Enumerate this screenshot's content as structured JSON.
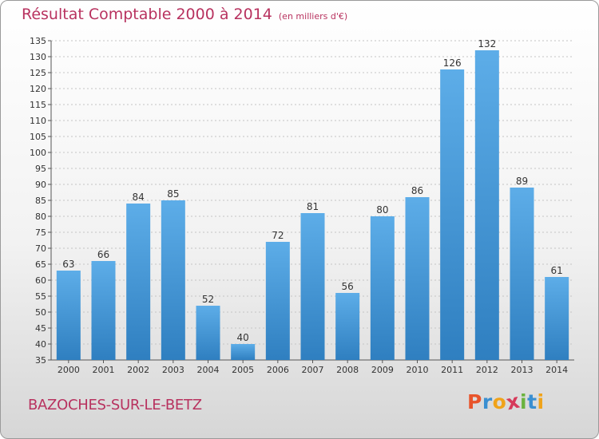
{
  "title": "Résultat Comptable 2000 à 2014",
  "subtitle": "(en milliers d'€)",
  "city": "BAZOCHES-SUR-LE-BETZ",
  "brand": {
    "letters": [
      "P",
      "r",
      "o",
      "x",
      "i",
      "t",
      "i"
    ],
    "colors": [
      "#e8542b",
      "#3a8fd1",
      "#f0a31a",
      "#d63a5a",
      "#6bb33f",
      "#3a8fd1",
      "#f0a31a"
    ]
  },
  "colors": {
    "bar_light": "#5dade8",
    "bar_dark": "#2f7fc0",
    "accent": "#b8325f"
  },
  "chart_data": {
    "type": "bar",
    "title": "Résultat Comptable 2000 à 2014",
    "subtitle": "(en milliers d'€)",
    "xlabel": "",
    "ylabel": "",
    "categories": [
      "2000",
      "2001",
      "2002",
      "2003",
      "2004",
      "2005",
      "2006",
      "2007",
      "2008",
      "2009",
      "2010",
      "2011",
      "2012",
      "2013",
      "2014"
    ],
    "values": [
      63,
      66,
      84,
      85,
      52,
      40,
      72,
      81,
      56,
      80,
      86,
      126,
      132,
      89,
      61
    ],
    "ylim": [
      35,
      135
    ],
    "yticks": [
      35,
      40,
      45,
      50,
      55,
      60,
      65,
      70,
      75,
      80,
      85,
      90,
      95,
      100,
      105,
      110,
      115,
      120,
      125,
      130,
      135
    ],
    "grid": true
  }
}
